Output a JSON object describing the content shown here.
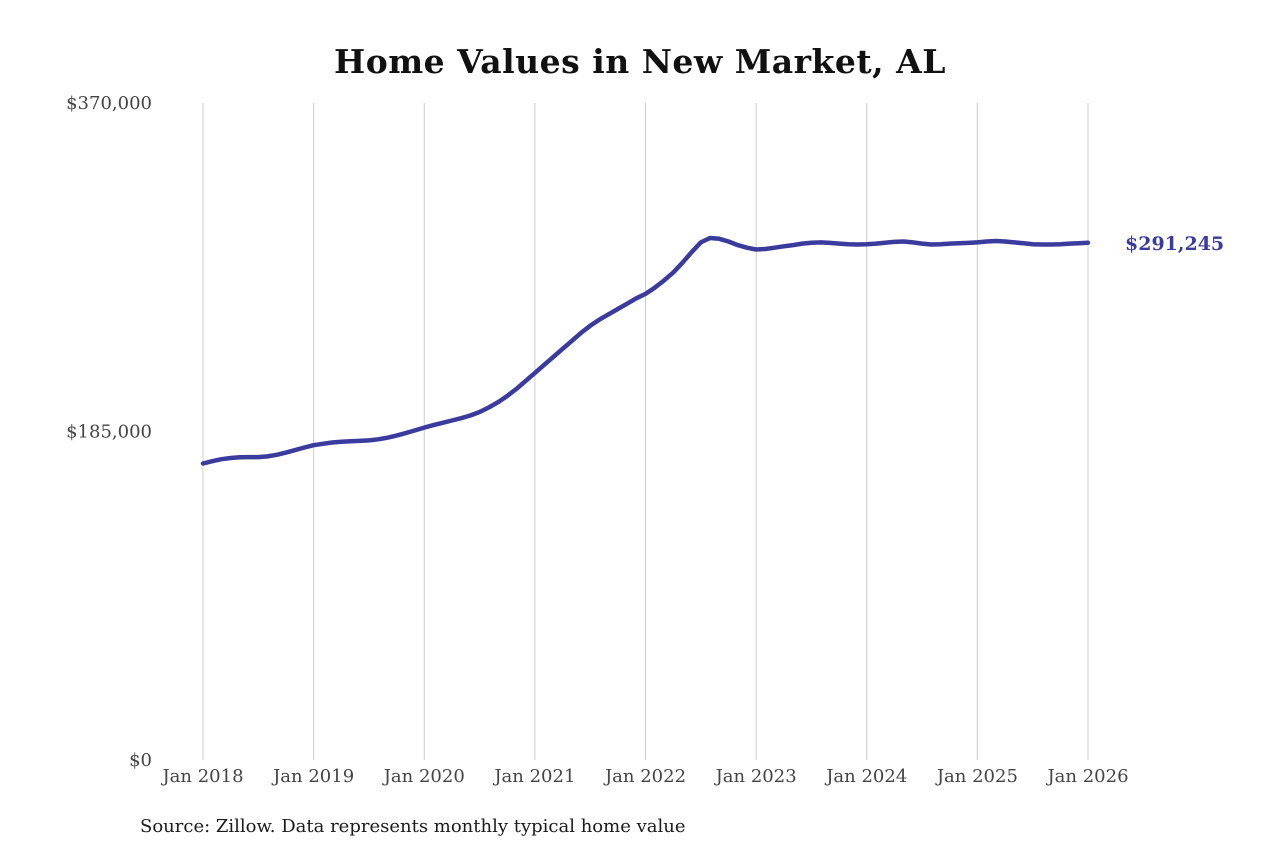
{
  "title": "Home Values in New Market, AL",
  "source_note": "Source: Zillow. Data represents monthly typical home value",
  "latest_value_label": "$291,245",
  "colors": {
    "line": "#3b3b9e",
    "grid": "#cccccc",
    "axis_text": "#444444",
    "title_text": "#111111"
  },
  "chart_data": {
    "type": "line",
    "title": "Home Values in New Market, AL",
    "series_name": "Monthly typical home value",
    "ylim": [
      0,
      370000
    ],
    "grid": "vertical-only",
    "legend": "none",
    "y_ticks": [
      {
        "label": "$0",
        "value": 0
      },
      {
        "label": "$185,000",
        "value": 185000
      },
      {
        "label": "$370,000",
        "value": 370000
      }
    ],
    "x_tick_labels": [
      "Jan 2018",
      "Jan 2019",
      "Jan 2020",
      "Jan 2021",
      "Jan 2022",
      "Jan 2023",
      "Jan 2024",
      "Jan 2025",
      "Jan 2026"
    ],
    "x": [
      "2018-01",
      "2018-02",
      "2018-03",
      "2018-04",
      "2018-05",
      "2018-06",
      "2018-07",
      "2018-08",
      "2018-09",
      "2018-10",
      "2018-11",
      "2018-12",
      "2019-01",
      "2019-02",
      "2019-03",
      "2019-04",
      "2019-05",
      "2019-06",
      "2019-07",
      "2019-08",
      "2019-09",
      "2019-10",
      "2019-11",
      "2019-12",
      "2020-01",
      "2020-02",
      "2020-03",
      "2020-04",
      "2020-05",
      "2020-06",
      "2020-07",
      "2020-08",
      "2020-09",
      "2020-10",
      "2020-11",
      "2020-12",
      "2021-01",
      "2021-02",
      "2021-03",
      "2021-04",
      "2021-05",
      "2021-06",
      "2021-07",
      "2021-08",
      "2021-09",
      "2021-10",
      "2021-11",
      "2021-12",
      "2022-01",
      "2022-02",
      "2022-03",
      "2022-04",
      "2022-05",
      "2022-06",
      "2022-07",
      "2022-08",
      "2022-09",
      "2022-10",
      "2022-11",
      "2022-12",
      "2023-01",
      "2023-02",
      "2023-03",
      "2023-04",
      "2023-05",
      "2023-06",
      "2023-07",
      "2023-08",
      "2023-09",
      "2023-10",
      "2023-11",
      "2023-12",
      "2024-01",
      "2024-02",
      "2024-03",
      "2024-04",
      "2024-05",
      "2024-06",
      "2024-07",
      "2024-08",
      "2024-09",
      "2024-10",
      "2024-11",
      "2024-12",
      "2025-01",
      "2025-02",
      "2025-03",
      "2025-04",
      "2025-05",
      "2025-06",
      "2025-07",
      "2025-08",
      "2025-09",
      "2025-10",
      "2025-11",
      "2025-12",
      "2026-01"
    ],
    "values": [
      167000,
      168300,
      169400,
      170100,
      170500,
      170600,
      170600,
      171000,
      171900,
      173100,
      174500,
      176000,
      177300,
      178100,
      178800,
      179200,
      179500,
      179700,
      180000,
      180600,
      181500,
      182700,
      184100,
      185600,
      187200,
      188600,
      189900,
      191200,
      192500,
      194000,
      196000,
      198500,
      201500,
      205000,
      209000,
      213500,
      218000,
      222500,
      227000,
      231500,
      236000,
      240500,
      244500,
      248000,
      251000,
      254000,
      257000,
      260000,
      262500,
      266000,
      270000,
      274500,
      280000,
      286000,
      291500,
      294000,
      293500,
      292000,
      290000,
      288500,
      287500,
      287800,
      288500,
      289300,
      290000,
      290800,
      291300,
      291500,
      291200,
      290800,
      290500,
      290300,
      290500,
      290800,
      291300,
      291800,
      292000,
      291500,
      290800,
      290300,
      290500,
      290800,
      291000,
      291200,
      291500,
      292000,
      292300,
      292000,
      291500,
      291000,
      290500,
      290300,
      290300,
      290500,
      290800,
      291000,
      291245
    ]
  }
}
